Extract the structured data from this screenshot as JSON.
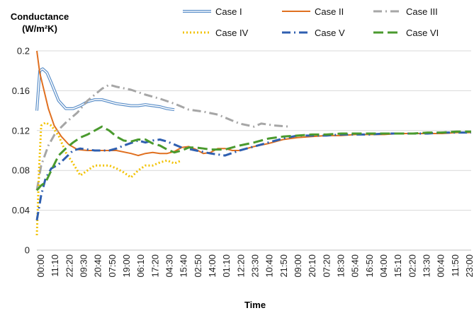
{
  "chart_data": {
    "type": "line",
    "ylabel_line1": "Conductance",
    "ylabel_line2": "(W/m²K)",
    "xlabel": "Time",
    "ylim": [
      0,
      0.2
    ],
    "yticks": [
      "0",
      "0.04",
      "0.08",
      "0.12",
      "0.16",
      "0.2"
    ],
    "ytick_values": [
      0,
      0.04,
      0.08,
      0.12,
      0.16,
      0.2
    ],
    "grid": "horizontal",
    "legend_position": "top",
    "x_tick_labels": [
      "00:00",
      "11:10",
      "22:20",
      "09:30",
      "20:40",
      "07:50",
      "19:00",
      "06:10",
      "17:20",
      "04:30",
      "15:40",
      "02:50",
      "14:00",
      "01:10",
      "12:20",
      "23:30",
      "10:40",
      "21:50",
      "09:00",
      "20:10",
      "07:20",
      "18:30",
      "05:40",
      "16:50",
      "04:00",
      "15:10",
      "02:20",
      "13:30",
      "00:40",
      "11:50",
      "23:00"
    ],
    "x_domain": [
      0,
      30
    ],
    "series": [
      {
        "name": "Case I",
        "color": "#5b8fc9",
        "style": "double",
        "x": [
          0,
          0.2,
          0.4,
          0.7,
          1.0,
          1.5,
          2.0,
          2.5,
          3.0,
          3.5,
          4.0,
          4.5,
          5.0,
          5.5,
          6.0,
          6.5,
          7.0,
          7.5,
          8.0,
          8.5,
          9.0,
          9.5
        ],
        "y": [
          0.14,
          0.18,
          0.182,
          0.178,
          0.168,
          0.15,
          0.142,
          0.142,
          0.145,
          0.149,
          0.151,
          0.151,
          0.149,
          0.147,
          0.146,
          0.145,
          0.145,
          0.146,
          0.145,
          0.144,
          0.142,
          0.141
        ]
      },
      {
        "name": "Case II",
        "color": "#e07020",
        "style": "solid",
        "x": [
          0,
          0.2,
          0.5,
          0.8,
          1.2,
          1.7,
          2.2,
          2.8,
          3.5,
          4.5,
          5.5,
          6.5,
          7.0,
          7.5,
          8.0,
          8.5,
          9.0,
          9.5,
          10.0,
          10.5,
          11.0,
          11.5,
          12.0,
          12.5,
          13.0,
          13.5,
          14.0,
          15.0,
          16.0,
          17.0,
          18.0,
          19.0,
          20.0,
          21.0,
          22.0,
          23.0,
          24.0,
          25.0,
          26.0,
          27.0,
          28.0,
          29.0,
          30.0
        ],
        "y": [
          0.2,
          0.178,
          0.16,
          0.142,
          0.125,
          0.114,
          0.106,
          0.101,
          0.1,
          0.1,
          0.1,
          0.097,
          0.095,
          0.097,
          0.098,
          0.097,
          0.097,
          0.099,
          0.103,
          0.104,
          0.101,
          0.097,
          0.098,
          0.102,
          0.102,
          0.1,
          0.1,
          0.104,
          0.107,
          0.111,
          0.113,
          0.114,
          0.115,
          0.115,
          0.116,
          0.116,
          0.116,
          0.117,
          0.117,
          0.117,
          0.117,
          0.118,
          0.118
        ]
      },
      {
        "name": "Case III",
        "color": "#a6a6a6",
        "style": "dashdot",
        "x": [
          0,
          0.3,
          0.8,
          1.3,
          2.0,
          2.8,
          3.5,
          4.5,
          5.0,
          5.5,
          6.5,
          7.5,
          8.5,
          9.5,
          10.5,
          11.5,
          12.5,
          13.5,
          14.0,
          15.0,
          15.5,
          16.5,
          17.5
        ],
        "y": [
          0.06,
          0.085,
          0.105,
          0.118,
          0.128,
          0.138,
          0.15,
          0.162,
          0.166,
          0.164,
          0.161,
          0.156,
          0.152,
          0.147,
          0.141,
          0.139,
          0.136,
          0.13,
          0.127,
          0.124,
          0.127,
          0.125,
          0.124
        ]
      },
      {
        "name": "Case IV",
        "color": "#f2c200",
        "style": "dotted",
        "x": [
          0,
          0.15,
          0.3,
          0.6,
          1.0,
          1.5,
          2.0,
          2.5,
          3.0,
          3.5,
          4.0,
          4.5,
          5.0,
          5.5,
          6.0,
          6.5,
          7.0,
          7.5,
          8.0,
          8.5,
          9.0,
          9.5,
          10.0
        ],
        "y": [
          0.015,
          0.08,
          0.125,
          0.128,
          0.125,
          0.115,
          0.098,
          0.087,
          0.075,
          0.08,
          0.085,
          0.085,
          0.085,
          0.082,
          0.078,
          0.073,
          0.08,
          0.085,
          0.085,
          0.088,
          0.09,
          0.087,
          0.09
        ]
      },
      {
        "name": "Case V",
        "color": "#2f5fb0",
        "style": "dashdot",
        "x": [
          0,
          0.3,
          0.6,
          1.0,
          1.5,
          2.0,
          2.5,
          3.0,
          3.5,
          4.0,
          5.0,
          5.5,
          6.0,
          7.0,
          7.5,
          8.0,
          8.5,
          9.0,
          10.0,
          11.0,
          12.0,
          13.0,
          14.0,
          15.0,
          16.0,
          17.0,
          18.0,
          19.0,
          20.0,
          21.0,
          22.0,
          23.0,
          24.0,
          25.0,
          26.0,
          27.0,
          28.0,
          29.0,
          30.0
        ],
        "y": [
          0.03,
          0.055,
          0.072,
          0.082,
          0.086,
          0.093,
          0.1,
          0.102,
          0.101,
          0.1,
          0.1,
          0.102,
          0.105,
          0.11,
          0.108,
          0.11,
          0.111,
          0.109,
          0.103,
          0.1,
          0.097,
          0.095,
          0.1,
          0.104,
          0.108,
          0.112,
          0.115,
          0.115,
          0.115,
          0.116,
          0.116,
          0.116,
          0.117,
          0.117,
          0.117,
          0.117,
          0.118,
          0.118,
          0.118
        ]
      },
      {
        "name": "Case VI",
        "color": "#4a9a2e",
        "style": "dashed",
        "x": [
          0,
          0.3,
          0.6,
          1.0,
          1.5,
          2.0,
          2.5,
          3.0,
          3.5,
          4.0,
          4.5,
          5.0,
          5.5,
          6.0,
          6.5,
          7.0,
          7.5,
          8.0,
          8.5,
          9.0,
          9.5,
          10.0,
          10.5,
          11.0,
          11.5,
          12.0,
          13.0,
          14.0,
          15.0,
          16.0,
          17.0,
          18.0,
          19.0,
          20.0,
          21.0,
          22.0,
          23.0,
          24.0,
          25.0,
          26.0,
          27.0,
          28.0,
          29.0,
          30.0
        ],
        "y": [
          0.06,
          0.065,
          0.068,
          0.08,
          0.095,
          0.102,
          0.108,
          0.113,
          0.116,
          0.12,
          0.124,
          0.12,
          0.114,
          0.11,
          0.109,
          0.111,
          0.111,
          0.107,
          0.105,
          0.101,
          0.098,
          0.1,
          0.103,
          0.103,
          0.102,
          0.101,
          0.101,
          0.105,
          0.108,
          0.112,
          0.114,
          0.115,
          0.116,
          0.116,
          0.117,
          0.117,
          0.117,
          0.117,
          0.117,
          0.117,
          0.118,
          0.118,
          0.119,
          0.119
        ]
      }
    ]
  }
}
